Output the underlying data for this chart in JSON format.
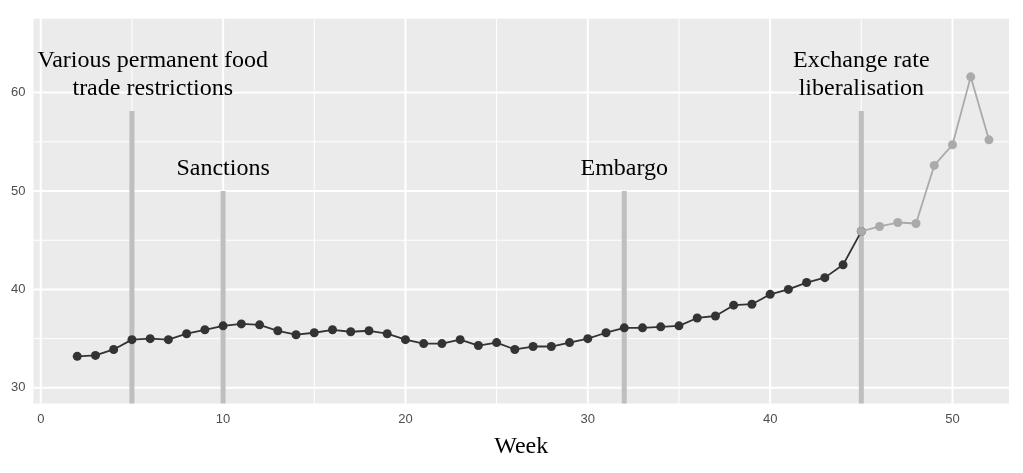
{
  "chart_data": {
    "type": "line",
    "xlabel": "Week",
    "xlim": [
      -0.4,
      53.1
    ],
    "xticks": [
      0,
      10,
      20,
      30,
      40,
      50
    ],
    "ylim": [
      28.4,
      67.5
    ],
    "yticks": [
      30,
      40,
      50,
      60
    ],
    "grid": true,
    "marker": "circle",
    "line_style": "solid",
    "series": [
      {
        "color": "#333333",
        "x": [
          2,
          3,
          4,
          5,
          6,
          7,
          8,
          9,
          10,
          11,
          12,
          13,
          14,
          15,
          16,
          17,
          18,
          19,
          20,
          21,
          22,
          23,
          24,
          25,
          26,
          27,
          28,
          29,
          30,
          31,
          32,
          33,
          34,
          35,
          36,
          37,
          38,
          39,
          40,
          41,
          42,
          43,
          44,
          45
        ],
        "values": [
          33.2,
          33.3,
          33.9,
          34.9,
          35.0,
          34.9,
          35.5,
          35.9,
          36.3,
          36.5,
          36.4,
          35.8,
          35.4,
          35.6,
          35.9,
          35.7,
          35.8,
          35.5,
          34.9,
          34.5,
          34.5,
          34.9,
          34.3,
          34.6,
          33.9,
          34.2,
          34.2,
          34.6,
          35.0,
          35.6,
          36.1,
          36.1,
          36.2,
          36.3,
          37.1,
          37.3,
          38.4,
          38.5,
          39.5,
          40.0,
          40.7,
          41.2,
          42.5,
          45.9
        ]
      },
      {
        "color": "#aaaaaa",
        "x": [
          45,
          46,
          47,
          48,
          49,
          50,
          51,
          52
        ],
        "values": [
          45.9,
          46.4,
          46.8,
          46.7,
          52.6,
          54.7,
          61.6,
          55.2
        ]
      }
    ],
    "ref_lines": [
      {
        "axis": "x",
        "value": 5,
        "label": "Various permanent food trade restrictions",
        "color": "#bfbfbf"
      },
      {
        "axis": "x",
        "value": 10,
        "label": "Sanctions",
        "color": "#bfbfbf"
      },
      {
        "axis": "x",
        "value": 32,
        "label": "Embargo",
        "color": "#bfbfbf"
      },
      {
        "axis": "x",
        "value": 45,
        "label": "Exchange rate liberalisation",
        "color": "#bfbfbf"
      }
    ]
  }
}
